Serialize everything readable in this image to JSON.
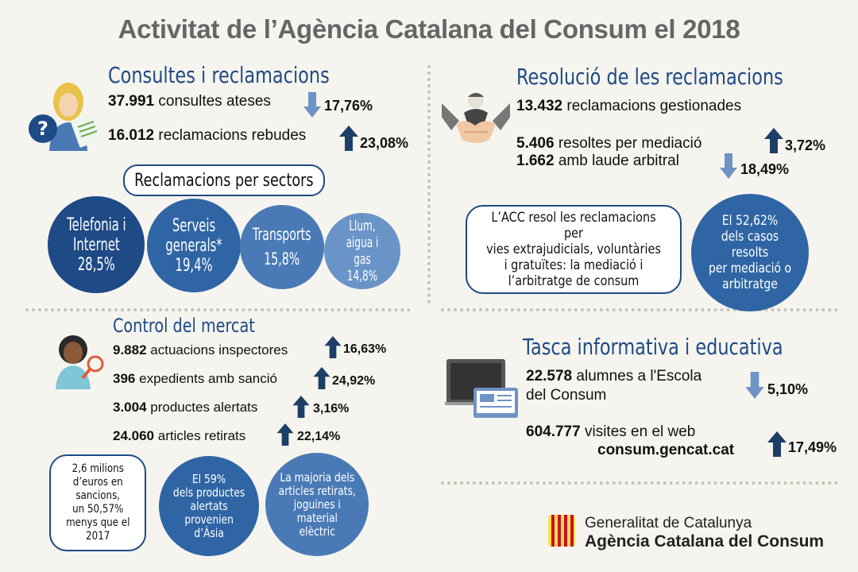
{
  "title": "Activitat de l’Agència Catalana del Consum el 2018",
  "consultes": {
    "title": "Consultes i reclamacions",
    "items": [
      {
        "value": "37.991",
        "label": "consultes ateses",
        "pct": "17,76%",
        "trend": "down"
      },
      {
        "value": "16.012",
        "label": "reclamacions rebudes",
        "pct": "23,08%",
        "trend": "up"
      }
    ],
    "sectors_label": "Reclamacions per sectors",
    "sectors": [
      {
        "name": "Telefonia i\nInternet",
        "value": "28,5%",
        "color": "#1e4a86"
      },
      {
        "name": "Serveis\ngenerals*",
        "value": "19,4%",
        "color": "#2f65a4"
      },
      {
        "name": "Transports",
        "value": "15,8%",
        "color": "#4a7ab6"
      },
      {
        "name": "Llum,\naigua i gas",
        "value": "14,8%",
        "color": "#6a94c8"
      }
    ]
  },
  "resolucio": {
    "title": "Resolució de les reclamacions",
    "items": [
      {
        "value": "13.432",
        "label": "reclamacions gestionades"
      },
      {
        "value": "5.406",
        "label": "resoltes per mediació",
        "pct": "3,72%",
        "trend": "up"
      },
      {
        "value": "1.662",
        "label": "amb laude arbitral",
        "pct": "18,49%",
        "trend": "down"
      }
    ],
    "bubble": "L’ACC resol les reclamacions per\nvies  extrajudicials, voluntàries\ni gratuïtes: la mediació i\nl’arbitratge de consum",
    "circle": "El 52,62%\ndels casos resolts\nper mediació o\narbitratge"
  },
  "control": {
    "title": "Control del mercat",
    "items": [
      {
        "value": "9.882",
        "label": "actuacions inspectores",
        "pct": "16,63%",
        "trend": "up"
      },
      {
        "value": "396",
        "label": "expedients amb sanció",
        "pct": "24,92%",
        "trend": "up"
      },
      {
        "value": "3.004",
        "label": "productes alertats",
        "pct": "3,16%",
        "trend": "up"
      },
      {
        "value": "24.060",
        "label": "articles retirats",
        "pct": "22,14%",
        "trend": "up"
      }
    ],
    "bubble": "2,6 milions\nd’euros en\nsancions,\nun 50,57%\nmenys que el\n2017",
    "circle1": "El 59%\ndels productes\nalertats\nprovenien\nd’Àsia",
    "circle2": "La majoria dels\narticles retirats,\njoguines i\nmaterial\nelèctric"
  },
  "tasca": {
    "title": "Tasca informativa i educativa",
    "item1": {
      "value": "22.578",
      "label_line1": "alumnes a l'Escola",
      "label_line2": "del Consum",
      "pct": "5,10%",
      "trend": "down"
    },
    "item2": {
      "value": "604.777",
      "label_line1": "visites en el web",
      "label_line2": "consum.gencat.cat",
      "pct": "17,49%",
      "trend": "up"
    }
  },
  "footer": {
    "line1": "Generalitat de Catalunya",
    "line2": "Agència Catalana del Consum"
  },
  "colors": {
    "dark_blue": "#1e4a86",
    "mid_blue": "#2f65a4",
    "light_blue": "#6a94c8",
    "arrow_up": "#1d3f66",
    "arrow_down": "#6f93c4"
  }
}
